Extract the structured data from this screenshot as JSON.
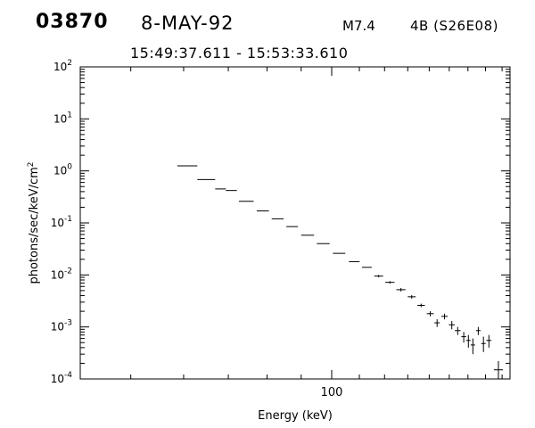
{
  "header": {
    "event_id": "03870",
    "date": "8-MAY-92",
    "flare_class": "M7.4",
    "importance_location": "4B (S26E08)",
    "time_range": "15:49:37.611 - 15:53:33.610"
  },
  "chart_data": {
    "type": "scatter",
    "title": "",
    "xlabel": "Energy (keV)",
    "ylabel": "photons/sec/keV/cm",
    "ylabel_sup": "2",
    "x_scale": "log",
    "y_scale": "log",
    "xlim": [
      42,
      185
    ],
    "ylim": [
      0.0001,
      100
    ],
    "x_tick_labels": [
      {
        "value": 100,
        "label": "100"
      }
    ],
    "y_tick_labels": [
      {
        "value": 100,
        "base": "10",
        "exp": "2"
      },
      {
        "value": 10,
        "base": "10",
        "exp": "1"
      },
      {
        "value": 1,
        "base": "10",
        "exp": "0"
      },
      {
        "value": 0.1,
        "base": "10",
        "exp": "-1"
      },
      {
        "value": 0.01,
        "base": "10",
        "exp": "-2"
      },
      {
        "value": 0.001,
        "base": "10",
        "exp": "-3"
      },
      {
        "value": 0.0001,
        "base": "10",
        "exp": "-4"
      }
    ],
    "grid": false,
    "legend": "none",
    "series": [
      {
        "marker": "error-cross",
        "points": [
          {
            "x_lo": 58.7,
            "x_hi": 62.9,
            "y": 1.25,
            "y_lo": 1.25,
            "y_hi": 1.25
          },
          {
            "x_lo": 62.9,
            "x_hi": 66.9,
            "y": 0.68,
            "y_lo": 0.68,
            "y_hi": 0.68
          },
          {
            "x_lo": 66.9,
            "x_hi": 69.4,
            "y": 0.45,
            "y_lo": 0.45,
            "y_hi": 0.45
          },
          {
            "x_lo": 69.4,
            "x_hi": 72.1,
            "y": 0.42,
            "y_lo": 0.42,
            "y_hi": 0.42
          },
          {
            "x_lo": 72.6,
            "x_hi": 76.4,
            "y": 0.26,
            "y_lo": 0.26,
            "y_hi": 0.26
          },
          {
            "x_lo": 77.2,
            "x_hi": 80.5,
            "y": 0.17,
            "y_lo": 0.17,
            "y_hi": 0.17
          },
          {
            "x_lo": 81.3,
            "x_hi": 84.7,
            "y": 0.12,
            "y_lo": 0.12,
            "y_hi": 0.12
          },
          {
            "x_lo": 85.5,
            "x_hi": 89.0,
            "y": 0.085,
            "y_lo": 0.085,
            "y_hi": 0.085
          },
          {
            "x_lo": 90.0,
            "x_hi": 94.1,
            "y": 0.058,
            "y_lo": 0.058,
            "y_hi": 0.058
          },
          {
            "x_lo": 95.0,
            "x_hi": 99.3,
            "y": 0.04,
            "y_lo": 0.04,
            "y_hi": 0.04
          },
          {
            "x_lo": 100.4,
            "x_hi": 104.8,
            "y": 0.026,
            "y_lo": 0.026,
            "y_hi": 0.026
          },
          {
            "x_lo": 106.1,
            "x_hi": 110.1,
            "y": 0.018,
            "y_lo": 0.018,
            "y_hi": 0.018
          },
          {
            "x_lo": 111.0,
            "x_hi": 114.8,
            "y": 0.014,
            "y_lo": 0.014,
            "y_hi": 0.014
          },
          {
            "x_lo": 115.8,
            "x_hi": 119.4,
            "y": 0.0095,
            "y_lo": 0.009,
            "y_hi": 0.01
          },
          {
            "x_lo": 120.3,
            "x_hi": 124.2,
            "y": 0.0072,
            "y_lo": 0.0068,
            "y_hi": 0.0076
          },
          {
            "x_lo": 125.0,
            "x_hi": 129.0,
            "y": 0.0052,
            "y_lo": 0.0048,
            "y_hi": 0.0056
          },
          {
            "x_lo": 130.0,
            "x_hi": 133.6,
            "y": 0.0038,
            "y_lo": 0.0035,
            "y_hi": 0.0041
          },
          {
            "x_lo": 134.4,
            "x_hi": 137.9,
            "y": 0.0026,
            "y_lo": 0.0024,
            "y_hi": 0.0028
          },
          {
            "x_lo": 138.8,
            "x_hi": 142.2,
            "y": 0.0018,
            "y_lo": 0.0016,
            "y_hi": 0.002
          },
          {
            "x_lo": 142.5,
            "x_hi": 145.2,
            "y": 0.0012,
            "y_lo": 0.001,
            "y_hi": 0.0014
          },
          {
            "x_lo": 146.0,
            "x_hi": 149.2,
            "y": 0.0016,
            "y_lo": 0.0014,
            "y_hi": 0.0018
          },
          {
            "x_lo": 149.8,
            "x_hi": 152.9,
            "y": 0.0011,
            "y_lo": 0.0009,
            "y_hi": 0.0013
          },
          {
            "x_lo": 152.9,
            "x_hi": 156.0,
            "y": 0.00085,
            "y_lo": 0.0007,
            "y_hi": 0.001
          },
          {
            "x_lo": 156.4,
            "x_hi": 159.0,
            "y": 0.00065,
            "y_lo": 0.0005,
            "y_hi": 0.0008
          },
          {
            "x_lo": 159.0,
            "x_hi": 161.5,
            "y": 0.00055,
            "y_lo": 0.0004,
            "y_hi": 0.0007
          },
          {
            "x_lo": 161.5,
            "x_hi": 164.0,
            "y": 0.00045,
            "y_lo": 0.0003,
            "y_hi": 0.0006
          },
          {
            "x_lo": 164.5,
            "x_hi": 167.1,
            "y": 0.00085,
            "y_lo": 0.0007,
            "y_hi": 0.001
          },
          {
            "x_lo": 167.5,
            "x_hi": 170.1,
            "y": 0.00048,
            "y_lo": 0.00033,
            "y_hi": 0.00065
          },
          {
            "x_lo": 170.5,
            "x_hi": 173.5,
            "y": 0.00055,
            "y_lo": 0.0004,
            "y_hi": 0.0007
          },
          {
            "x_lo": 175.0,
            "x_hi": 180.5,
            "y": 0.00015,
            "y_lo": 0.0001,
            "y_hi": 0.00022
          }
        ]
      }
    ]
  }
}
